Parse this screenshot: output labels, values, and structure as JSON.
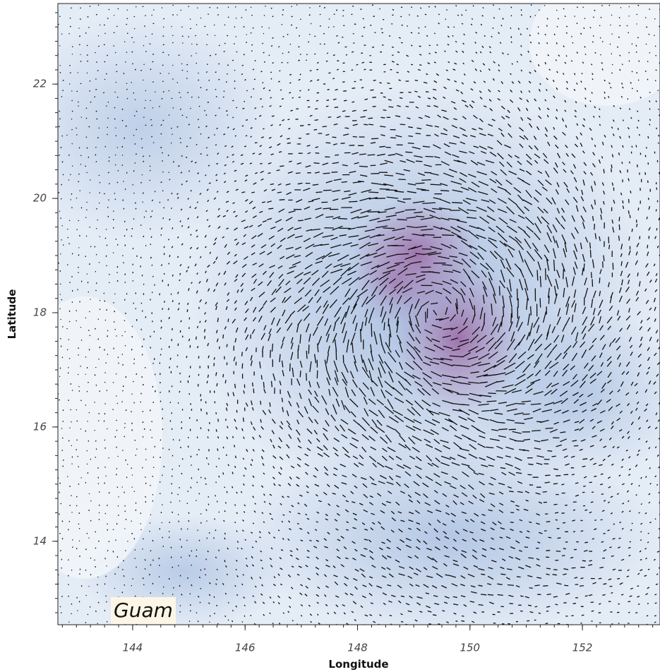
{
  "chart_data": {
    "type": "quiver",
    "x_label": "Longitude",
    "y_label": "Latitude",
    "xlim": [
      142.67,
      153.38
    ],
    "ylim": [
      12.54,
      23.41
    ],
    "xticks": [
      144,
      146,
      148,
      150,
      152
    ],
    "yticks": [
      14,
      16,
      18,
      20,
      22
    ],
    "annotation": "Guam"
  }
}
